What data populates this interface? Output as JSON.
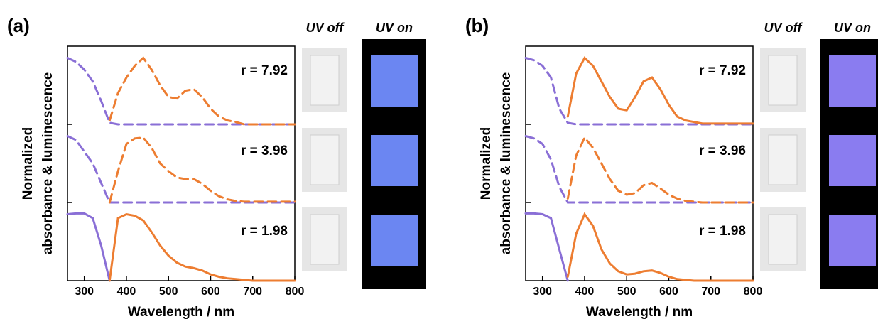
{
  "chart_data": [
    {
      "type": "line",
      "panel_label": "(a)",
      "xlabel": "Wavelength / nm",
      "ylabel": [
        "Normalized",
        "absorbance & luminescence"
      ],
      "photo_labels": [
        "UV off",
        "UV on"
      ],
      "annotations": [
        "r = 7.92",
        "r = 3.96",
        "r = 1.98"
      ],
      "x": [
        260,
        280,
        300,
        320,
        340,
        360,
        380,
        400,
        420,
        440,
        460,
        480,
        500,
        520,
        540,
        560,
        580,
        600,
        620,
        640,
        660,
        680,
        700,
        720,
        740,
        760,
        780,
        800
      ],
      "xlim": [
        260,
        800
      ],
      "xticks": [
        300,
        400,
        500,
        600,
        700,
        800
      ],
      "ylim": [
        0,
        3
      ],
      "yticks": [
        1,
        2
      ],
      "series": [
        {
          "color": "#8a6fd6",
          "dash": true,
          "values": [
            2.85,
            2.8,
            2.7,
            2.55,
            2.3,
            2.02,
            2.0,
            2.0,
            2.0,
            2.0,
            2.0,
            2.0,
            2.0,
            2.0,
            2.0,
            2.0,
            2.0,
            2.0,
            2.0,
            2.0,
            2.0,
            2.0,
            2.0,
            2.0,
            2.0,
            2.0,
            2.0,
            2.0
          ]
        },
        {
          "color": "#ed7d31",
          "dash": true,
          "values": [
            null,
            null,
            null,
            null,
            null,
            2.05,
            2.4,
            2.6,
            2.75,
            2.85,
            2.7,
            2.5,
            2.35,
            2.33,
            2.43,
            2.45,
            2.35,
            2.2,
            2.1,
            2.05,
            2.03,
            2.0,
            2.0,
            2.0,
            2.0,
            2.0,
            2.0,
            2.0
          ]
        },
        {
          "color": "#8a6fd6",
          "dash": true,
          "values": [
            1.85,
            1.8,
            1.65,
            1.5,
            1.25,
            1.0,
            1.0,
            1.0,
            1.0,
            1.0,
            1.0,
            1.0,
            1.0,
            1.0,
            1.0,
            1.0,
            1.0,
            1.0,
            1.0,
            1.0,
            1.0,
            1.0,
            1.0,
            1.0,
            1.0,
            1.0,
            1.0,
            1.0
          ]
        },
        {
          "color": "#ed7d31",
          "dash": true,
          "values": [
            null,
            null,
            null,
            null,
            null,
            1.0,
            1.4,
            1.75,
            1.82,
            1.83,
            1.7,
            1.5,
            1.4,
            1.32,
            1.3,
            1.3,
            1.24,
            1.15,
            1.08,
            1.04,
            1.02,
            1.01,
            1.01,
            1.01,
            1.01,
            1.01,
            1.01,
            1.01
          ]
        },
        {
          "color": "#8a6fd6",
          "dash": false,
          "values": [
            0.85,
            0.86,
            0.86,
            0.8,
            0.45,
            0.0,
            null,
            null,
            null,
            null,
            null,
            null,
            null,
            null,
            null,
            null,
            null,
            null,
            null,
            null,
            null,
            null,
            null,
            null,
            null,
            null,
            null,
            null
          ]
        },
        {
          "color": "#ed7d31",
          "dash": false,
          "values": [
            null,
            null,
            null,
            null,
            null,
            0.0,
            0.8,
            0.85,
            0.83,
            0.77,
            0.62,
            0.45,
            0.32,
            0.23,
            0.18,
            0.16,
            0.13,
            0.08,
            0.05,
            0.03,
            0.02,
            0.01,
            0,
            0,
            0,
            0,
            0,
            0
          ]
        }
      ]
    },
    {
      "type": "line",
      "panel_label": "(b)",
      "xlabel": "Wavelength / nm",
      "ylabel": [
        "Normalized",
        "absorbance & luminescence"
      ],
      "photo_labels": [
        "UV off",
        "UV on"
      ],
      "annotations": [
        "r = 7.92",
        "r = 3.96",
        "r = 1.98"
      ],
      "x": [
        260,
        280,
        300,
        320,
        340,
        360,
        380,
        400,
        420,
        440,
        460,
        480,
        500,
        520,
        540,
        560,
        580,
        600,
        620,
        640,
        660,
        680,
        700,
        720,
        740,
        760,
        780,
        800
      ],
      "xlim": [
        260,
        800
      ],
      "xticks": [
        300,
        400,
        500,
        600,
        700,
        800
      ],
      "ylim": [
        0,
        3
      ],
      "yticks": [
        1,
        2
      ],
      "series": [
        {
          "color": "#8a6fd6",
          "dash": true,
          "values": [
            2.85,
            2.82,
            2.75,
            2.6,
            2.2,
            2.02,
            2.0,
            2.0,
            2.0,
            2.0,
            2.0,
            2.0,
            2.0,
            2.0,
            2.0,
            2.0,
            2.0,
            2.0,
            2.0,
            2.0,
            2.0,
            2.0,
            2.0,
            2.0,
            2.0,
            2.0,
            2.0,
            2.0
          ]
        },
        {
          "color": "#ed7d31",
          "dash": false,
          "values": [
            null,
            null,
            null,
            null,
            null,
            2.1,
            2.65,
            2.85,
            2.75,
            2.55,
            2.35,
            2.2,
            2.18,
            2.35,
            2.55,
            2.6,
            2.45,
            2.25,
            2.1,
            2.05,
            2.03,
            2.01,
            2.01,
            2.01,
            2.01,
            2.01,
            2.01,
            2.01
          ]
        },
        {
          "color": "#8a6fd6",
          "dash": true,
          "values": [
            1.85,
            1.82,
            1.75,
            1.55,
            1.2,
            1.0,
            1.0,
            1.0,
            1.0,
            1.0,
            1.0,
            1.0,
            1.0,
            1.0,
            1.0,
            1.0,
            1.0,
            1.0,
            1.0,
            1.0,
            1.0,
            1.0,
            1.0,
            1.0,
            1.0,
            1.0,
            1.0,
            1.0
          ]
        },
        {
          "color": "#ed7d31",
          "dash": true,
          "values": [
            null,
            null,
            null,
            null,
            null,
            1.05,
            1.6,
            1.83,
            1.7,
            1.5,
            1.3,
            1.15,
            1.1,
            1.12,
            1.22,
            1.25,
            1.18,
            1.1,
            1.05,
            1.02,
            1.01,
            1.0,
            1.0,
            1.0,
            1.0,
            1.0,
            1.0,
            1.0
          ]
        },
        {
          "color": "#8a6fd6",
          "dash": false,
          "values": [
            0.86,
            0.86,
            0.85,
            0.8,
            0.4,
            0.0,
            null,
            null,
            null,
            null,
            null,
            null,
            null,
            null,
            null,
            null,
            null,
            null,
            null,
            null,
            null,
            null,
            null,
            null,
            null,
            null,
            null,
            null
          ]
        },
        {
          "color": "#ed7d31",
          "dash": false,
          "values": [
            null,
            null,
            null,
            null,
            null,
            0.05,
            0.6,
            0.85,
            0.7,
            0.4,
            0.22,
            0.12,
            0.08,
            0.09,
            0.12,
            0.13,
            0.1,
            0.05,
            0.02,
            0.01,
            0,
            0,
            0,
            0,
            0,
            0,
            0,
            0
          ]
        }
      ]
    }
  ]
}
